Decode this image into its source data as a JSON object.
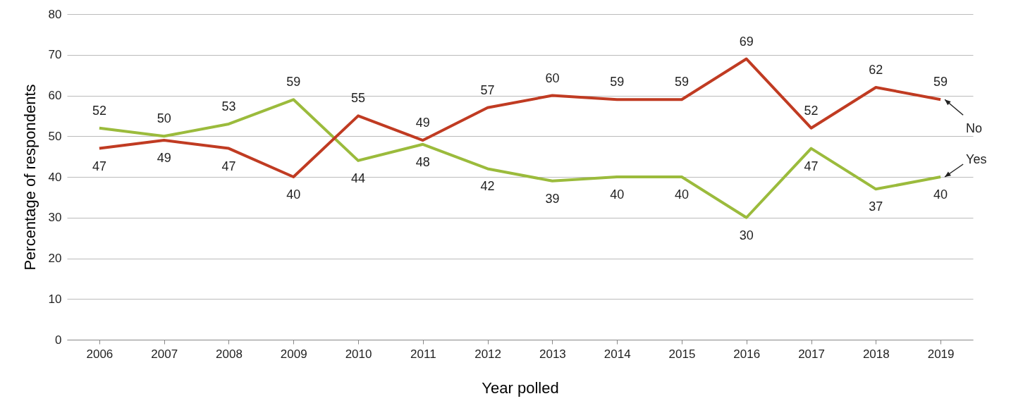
{
  "chart_data": {
    "type": "line",
    "xlabel": "Year polled",
    "ylabel": "Percentage of respondents",
    "categories": [
      "2006",
      "2007",
      "2008",
      "2009",
      "2010",
      "2011",
      "2012",
      "2013",
      "2014",
      "2015",
      "2016",
      "2017",
      "2018",
      "2019"
    ],
    "series": [
      {
        "name": "Yes",
        "color": "#9bbb3c",
        "values": [
          52,
          50,
          53,
          59,
          44,
          48,
          42,
          39,
          40,
          40,
          30,
          47,
          37,
          40
        ]
      },
      {
        "name": "No",
        "color": "#c03b22",
        "values": [
          47,
          49,
          47,
          40,
          55,
          49,
          57,
          60,
          59,
          59,
          69,
          52,
          62,
          59
        ]
      }
    ],
    "ylim": [
      0,
      80
    ],
    "yticks": [
      0,
      10,
      20,
      30,
      40,
      50,
      60,
      70,
      80
    ],
    "grid": "y",
    "marker": "none",
    "line_style": "solid",
    "data_labels": true
  }
}
